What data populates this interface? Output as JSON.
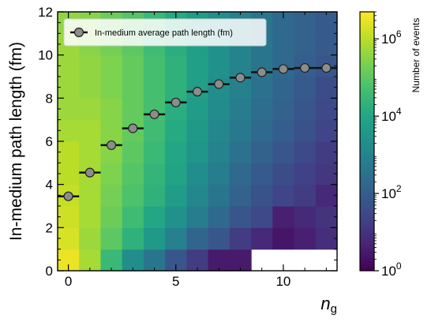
{
  "chart_data": {
    "type": "heatmap",
    "xlabel": "n",
    "xlabel_sub": "g",
    "ylabel": "In-medium path length (fm)",
    "xlim": [
      -0.5,
      12.5
    ],
    "ylim": [
      0,
      12
    ],
    "x_ticks": [
      0,
      5,
      10
    ],
    "y_ticks": [
      0,
      2,
      4,
      6,
      8,
      10,
      12
    ],
    "grid": false,
    "colorbar": {
      "label": "Number of events",
      "scale": "log",
      "range": [
        1,
        5000000
      ],
      "tick_base": "10",
      "tick_exponents": [
        "0",
        "2",
        "4",
        "6"
      ],
      "colormap": "viridis"
    },
    "heatmap": {
      "x_bin_width": 1,
      "y_bin_width": 1,
      "x_bin_centers": [
        0,
        1,
        2,
        3,
        4,
        5,
        6,
        7,
        8,
        9,
        10,
        11,
        12
      ],
      "y_bin_starts": [
        0,
        1,
        2,
        3,
        4,
        5,
        6,
        7,
        8,
        9,
        10,
        11
      ],
      "log10_counts": [
        [
          6.5,
          5.8,
          4.5,
          3.3,
          2.6,
          1.8,
          1.2,
          0.5,
          0.5,
          null,
          null,
          null,
          null
        ],
        [
          6.3,
          5.7,
          5.0,
          4.3,
          3.6,
          2.9,
          2.2,
          1.8,
          1.2,
          0.8,
          0.4,
          0.6,
          0.9
        ],
        [
          6.2,
          5.8,
          5.2,
          4.6,
          4.0,
          3.4,
          2.8,
          2.3,
          1.8,
          1.5,
          0.6,
          0.8,
          1.0
        ],
        [
          6.1,
          5.8,
          5.3,
          4.8,
          4.3,
          3.7,
          3.1,
          2.6,
          2.1,
          1.7,
          1.4,
          1.2,
          0.8
        ],
        [
          6.0,
          5.8,
          5.4,
          4.9,
          4.4,
          3.9,
          3.3,
          2.8,
          2.3,
          1.9,
          1.6,
          1.3,
          1.1
        ],
        [
          6.0,
          5.8,
          5.5,
          5.0,
          4.5,
          4.0,
          3.5,
          3.0,
          2.5,
          2.1,
          1.8,
          1.5,
          1.2
        ],
        [
          5.8,
          5.8,
          5.5,
          5.1,
          4.6,
          4.1,
          3.6,
          3.1,
          2.7,
          2.3,
          2.0,
          1.7,
          1.4
        ],
        [
          5.7,
          5.7,
          5.5,
          5.1,
          4.7,
          4.2,
          3.7,
          3.2,
          2.8,
          2.4,
          2.1,
          1.8,
          1.5
        ],
        [
          5.7,
          5.6,
          5.4,
          5.1,
          4.7,
          4.3,
          3.8,
          3.3,
          2.9,
          2.5,
          2.2,
          1.9,
          1.6
        ],
        [
          5.7,
          5.6,
          5.4,
          5.1,
          4.7,
          4.3,
          3.8,
          3.4,
          3.0,
          2.6,
          2.3,
          2.0,
          1.8
        ],
        [
          5.7,
          5.5,
          5.3,
          5.0,
          4.6,
          4.2,
          3.8,
          3.4,
          3.0,
          2.6,
          2.3,
          2.1,
          1.9
        ],
        [
          5.6,
          5.5,
          5.2,
          4.9,
          4.5,
          4.1,
          3.7,
          3.3,
          2.9,
          2.6,
          2.3,
          2.1,
          1.9
        ]
      ]
    },
    "series": [
      {
        "name": "In-medium average path length (fm)",
        "marker": "circle",
        "color": "#8c8c8c",
        "x": [
          0,
          1,
          2,
          3,
          4,
          5,
          6,
          7,
          8,
          9,
          10,
          11,
          12
        ],
        "y": [
          3.45,
          4.55,
          5.82,
          6.6,
          7.25,
          7.8,
          8.3,
          8.65,
          8.95,
          9.2,
          9.35,
          9.4,
          9.4
        ],
        "xerr": 0.5
      }
    ],
    "legend": {
      "placement": "top-left"
    }
  }
}
